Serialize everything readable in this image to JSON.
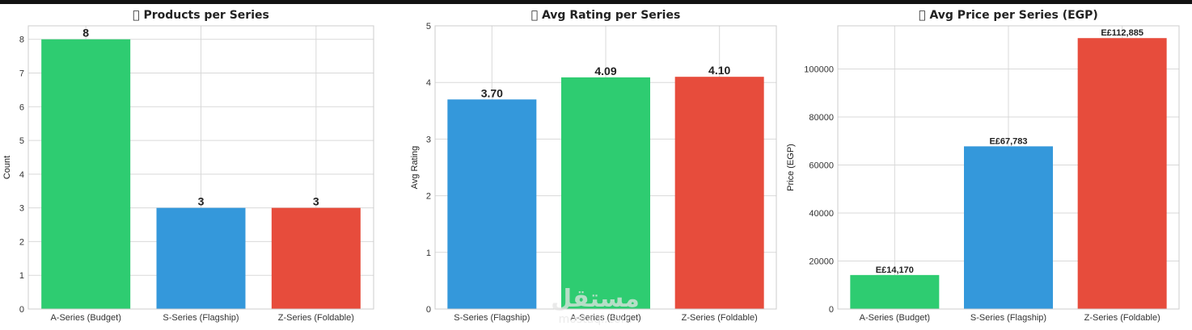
{
  "watermark": {
    "text": "مستقل",
    "subtext": "mostaql.com"
  },
  "chart_data": [
    {
      "type": "bar",
      "title": "􀀀 Products per Series",
      "xlabel": "",
      "ylabel": "Count",
      "ylim": [
        0,
        8.4
      ],
      "yticks": [
        0,
        1,
        2,
        3,
        4,
        5,
        6,
        7,
        8
      ],
      "yticklabels": [
        "0",
        "1",
        "2",
        "3",
        "4",
        "5",
        "6",
        "7",
        "8"
      ],
      "categories": [
        "A-Series (Budget)",
        "S-Series (Flagship)",
        "Z-Series (Foldable)"
      ],
      "values": [
        8,
        3,
        3
      ],
      "value_labels": [
        "8",
        "3",
        "3"
      ],
      "colors": [
        "#2ecc71",
        "#3498db",
        "#e74c3c"
      ],
      "grid": true
    },
    {
      "type": "bar",
      "title": "􀀀 Avg Rating per Series",
      "xlabel": "",
      "ylabel": "Avg Rating",
      "ylim": [
        0,
        5
      ],
      "yticks": [
        0,
        1,
        2,
        3,
        4,
        5
      ],
      "yticklabels": [
        "0",
        "1",
        "2",
        "3",
        "4",
        "5"
      ],
      "categories": [
        "S-Series (Flagship)",
        "A-Series (Budget)",
        "Z-Series (Foldable)"
      ],
      "values": [
        3.7,
        4.09,
        4.1
      ],
      "value_labels": [
        "3.70",
        "4.09",
        "4.10"
      ],
      "colors": [
        "#3498db",
        "#2ecc71",
        "#e74c3c"
      ],
      "grid": true
    },
    {
      "type": "bar",
      "title": "􀀀 Avg Price per Series (EGP)",
      "xlabel": "",
      "ylabel": "Price (EGP)",
      "ylim": [
        0,
        118000
      ],
      "yticks": [
        0,
        20000,
        40000,
        60000,
        80000,
        100000
      ],
      "yticklabels": [
        "0",
        "20000",
        "40000",
        "60000",
        "80000",
        "100000"
      ],
      "categories": [
        "A-Series (Budget)",
        "S-Series (Flagship)",
        "Z-Series (Foldable)"
      ],
      "values": [
        14170,
        67783,
        112885
      ],
      "value_labels": [
        "E£14,170",
        "E£67,783",
        "E£112,885"
      ],
      "colors": [
        "#2ecc71",
        "#3498db",
        "#e74c3c"
      ],
      "grid": true
    }
  ]
}
